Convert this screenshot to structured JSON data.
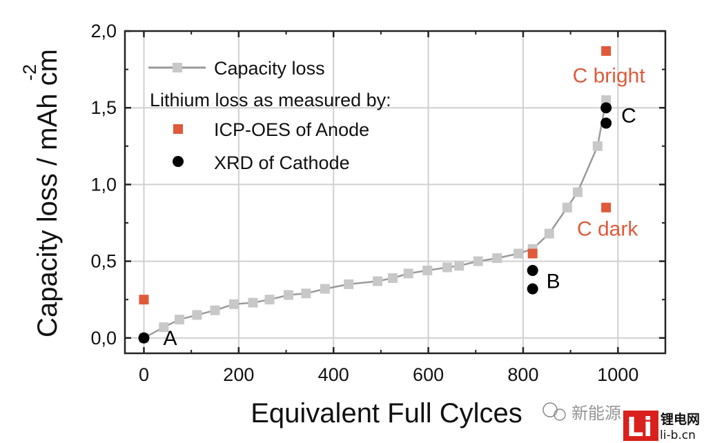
{
  "chart_data": {
    "type": "scatter",
    "xlabel": "Equivalent Full Cylces",
    "ylabel": "Capacity loss / mAh cm",
    "ylabel_superscript": "-2",
    "xlim": [
      -40,
      1100
    ],
    "ylim": [
      -0.1,
      2.0
    ],
    "xticks": [
      0,
      200,
      400,
      600,
      800,
      1000
    ],
    "xtick_labels": [
      "0",
      "200",
      "400",
      "600",
      "800",
      "1000"
    ],
    "yticks": [
      0.0,
      0.5,
      1.0,
      1.5,
      2.0
    ],
    "ytick_labels": [
      "0,0",
      "0,5",
      "1,0",
      "1,5",
      "2,0"
    ],
    "grid": true,
    "legend": {
      "placement": "top-left",
      "heading": "Lithium loss as measured by:",
      "items": [
        "Capacity loss",
        "ICP-OES of Anode",
        "XRD of Cathode"
      ]
    },
    "series": [
      {
        "name": "Capacity loss",
        "color": "#9a9a9a",
        "marker": "square",
        "marker_color": "#c8c8c8",
        "x": [
          0,
          42,
          75,
          112,
          150,
          190,
          230,
          265,
          305,
          342,
          382,
          432,
          493,
          525,
          558,
          598,
          640,
          665,
          705,
          745,
          790,
          820,
          855,
          893,
          915,
          957,
          975
        ],
        "y": [
          0.0,
          0.07,
          0.12,
          0.15,
          0.18,
          0.22,
          0.23,
          0.25,
          0.28,
          0.29,
          0.32,
          0.35,
          0.37,
          0.39,
          0.42,
          0.44,
          0.46,
          0.47,
          0.5,
          0.52,
          0.55,
          0.58,
          0.68,
          0.85,
          0.95,
          1.25,
          1.55
        ]
      },
      {
        "name": "ICP-OES of Anode",
        "color": "#e05a3a",
        "marker": "square",
        "x": [
          0,
          820,
          975,
          975
        ],
        "y": [
          0.25,
          0.55,
          1.87,
          0.85
        ]
      },
      {
        "name": "XRD of Cathode",
        "color": "#000000",
        "marker": "circle",
        "x": [
          0,
          820,
          820,
          975,
          975
        ],
        "y": [
          0.0,
          0.44,
          0.32,
          1.5,
          1.4
        ]
      }
    ],
    "annotations": [
      {
        "text": "A",
        "x": 0,
        "y": 0.0,
        "color": "#000000"
      },
      {
        "text": "B",
        "x": 820,
        "y": 0.38,
        "color": "#000000"
      },
      {
        "text": "C",
        "x": 975,
        "y": 1.45,
        "color": "#000000"
      },
      {
        "text": "C bright",
        "x": 975,
        "y": 1.72,
        "color": "#e05a3a"
      },
      {
        "text": "C dark",
        "x": 975,
        "y": 0.72,
        "color": "#e05a3a"
      }
    ]
  },
  "watermark": {
    "wechat_text": "新能源",
    "logo_letters": "Li",
    "logo_cn": "锂电网",
    "logo_domain": "li-b.cn"
  }
}
